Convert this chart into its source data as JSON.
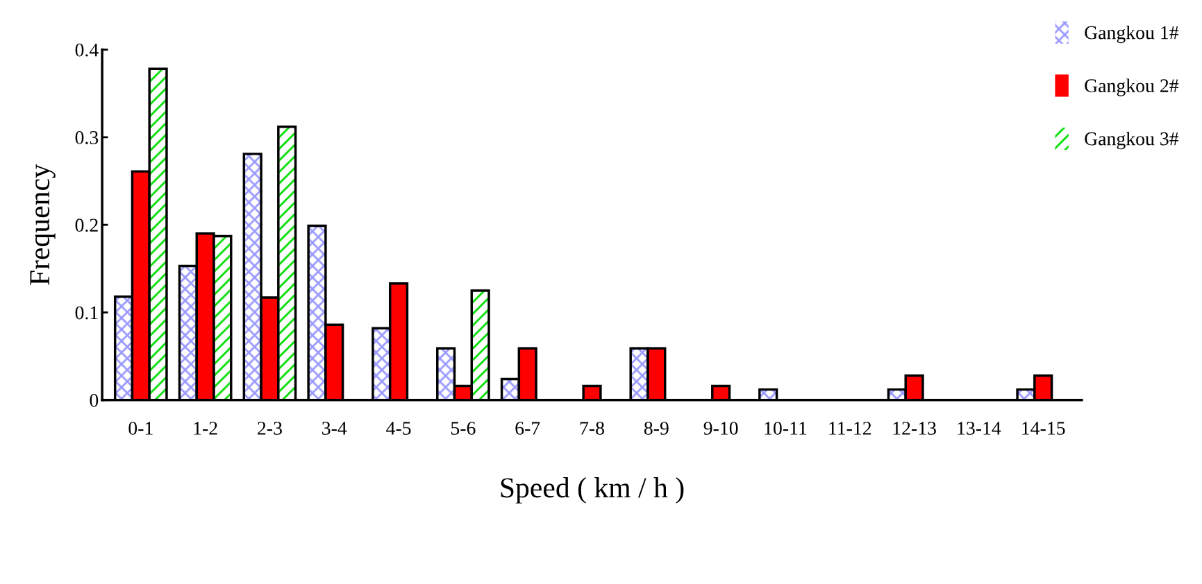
{
  "chart_data": {
    "type": "bar",
    "xlabel": "Speed ( km / h )",
    "ylabel": "Frequency",
    "categories": [
      "0-1",
      "1-2",
      "2-3",
      "3-4",
      "4-5",
      "5-6",
      "6-7",
      "7-8",
      "8-9",
      "9-10",
      "10-11",
      "11-12",
      "12-13",
      "13-14",
      "14-15"
    ],
    "series": [
      {
        "name": "Gangkou 1#",
        "color": "#9999ff",
        "values": [
          0.118,
          0.153,
          0.281,
          0.199,
          0.082,
          0.059,
          0.024,
          null,
          0.059,
          null,
          0.012,
          null,
          0.012,
          null,
          0.012
        ]
      },
      {
        "name": "Gangkou 2#",
        "color": "#ff0000",
        "values": [
          0.261,
          0.19,
          0.117,
          0.086,
          0.133,
          0.016,
          0.059,
          0.016,
          0.059,
          0.016,
          null,
          null,
          0.028,
          null,
          0.028
        ]
      },
      {
        "name": "Gangkou 3#",
        "color": "#00dd00",
        "values": [
          0.378,
          0.187,
          0.312,
          null,
          null,
          0.125,
          null,
          null,
          null,
          null,
          null,
          null,
          null,
          null,
          null
        ]
      }
    ],
    "ylim": [
      0,
      0.4
    ],
    "yticks": [
      0,
      0.1,
      0.2,
      0.3,
      0.4
    ],
    "grid": false,
    "legend": "top right"
  }
}
